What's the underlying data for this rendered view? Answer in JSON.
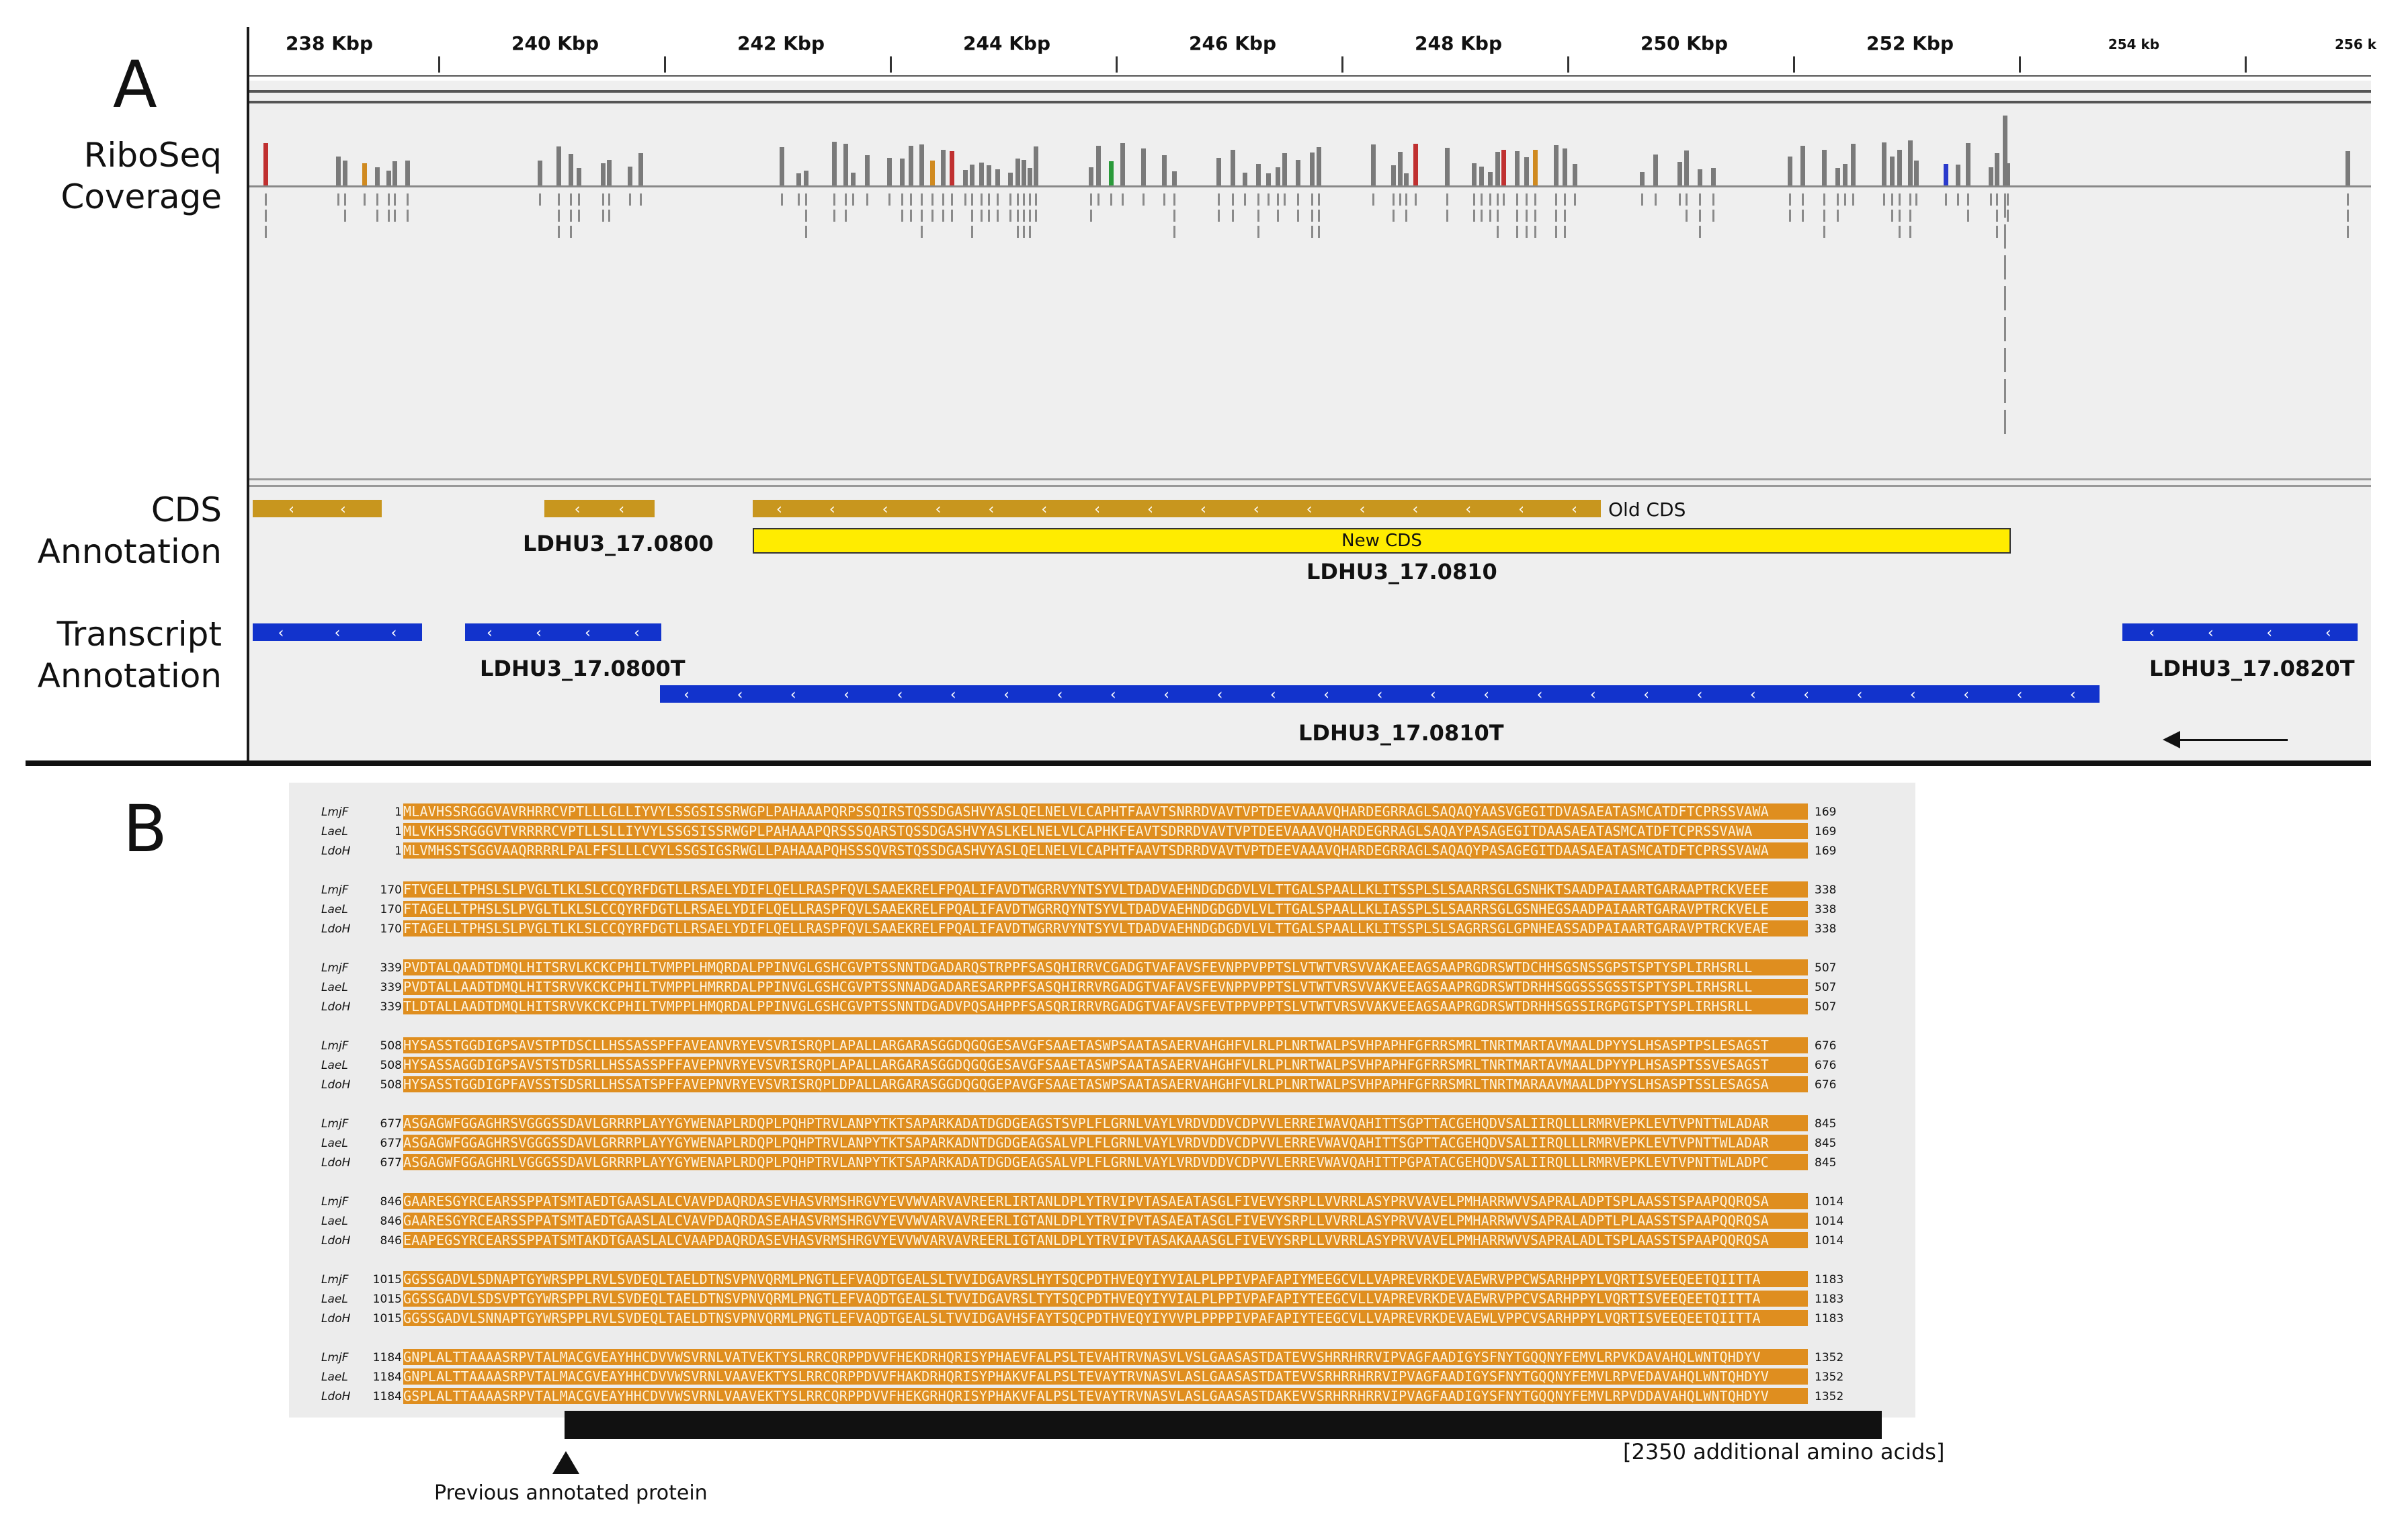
{
  "panel_a": {
    "letter": "A",
    "ruler_ticks": [
      "238 Kbp",
      "240 Kbp",
      "242 Kbp",
      "244 Kbp",
      "246 Kbp",
      "248 Kbp",
      "250 Kbp",
      "252 Kbp",
      "254 kb",
      "256 k"
    ],
    "tracks": {
      "riboseq": [
        "RiboSeq",
        "Coverage"
      ],
      "cds": [
        "CDS",
        "Annotation"
      ],
      "transcript": [
        "Transcript",
        "Annotation"
      ]
    },
    "cds_labels": {
      "old_cds": "Old CDS",
      "new_cds": "New CDS",
      "gene_0800": "LDHU3_17.0800",
      "gene_0810": "LDHU3_17.0810"
    },
    "transcript_labels": {
      "tx_0800": "LDHU3_17.0800T",
      "tx_0810": "LDHU3_17.0810T",
      "tx_0820": "LDHU3_17.0820T"
    },
    "colors": {
      "cds": "#c8961e",
      "new_cds": "#ffec00",
      "transcript": "#1233cc",
      "coverage": "#7a7a7a"
    }
  },
  "panel_b": {
    "letter": "B",
    "blocks": [
      {
        "rows": [
          {
            "species": "LmjF",
            "start": "1",
            "seq": "MLAVHSSRGGGVAVRHRRCVPTLLLGLLIYVYLSSGSISSRWGPLPAHAAAPQRPSSQIRSTQSSDGASHVYASLQELNELVLCAPHTFAAVTSNRRDVAVTVPTDEEVAAAVQHARDEGRRAGLSAQAQYAASVGEGITDVASAEATASMCATDFTCPRSSVAWA",
            "end": "169"
          },
          {
            "species": "LaeL",
            "start": "1",
            "seq": "MLVKHSSRGGGVTVRRRRCVPTLLSLLIYVYLSSGSISSRWGPLPAHAAAPQRSSSQARSTQSSDGASHVYASLKELNELVLCAPHKFEAVTSDRRDVAVTVPTDEEVAAAVQHARDEGRRAGLSAQAYPASAGEGITDAASAEATASMCATDFTCPRSSVAWA",
            "end": "169"
          },
          {
            "species": "LdoH",
            "start": "1",
            "seq": "MLVMHSSTSGGVAAQRRRRLPALFFSLLLCVYLSSGSIGSRWGLLPAHAAAPQHSSSQVRSTQSSDGASHVYASLQELNELVLCAPHTFAAVTSDRRDVAVTVPTDEEVAAAVQHARDEGRRAGLSAQAQYPASAGEGITDAASAEATASMCATDFTCPRSSVAWA",
            "end": "169"
          }
        ]
      },
      {
        "rows": [
          {
            "species": "LmjF",
            "start": "170",
            "seq": "FTVGELLTPHSLSLPVGLTLKLSLCCQYRFDGTLLRSAELYDIFLQELLRASPFQVLSAAEKRELFPQALIFAVDTWGRRVYNTSYVLTDADVAEHNDGDGDVLVLTTGALSPAALLKLITSSPLSLSAARRSGLGSNHKTSAADPAIAARTGARAAPTRCKVEEE",
            "end": "338"
          },
          {
            "species": "LaeL",
            "start": "170",
            "seq": "FTAGELLTPHSLSLPVGLTLKLSLCCQYRFDGTLLRSAELYDIFLQELLRASPFQVLSAAEKRELFPQALIFAVDTWGRRQYNTSYVLTDADVAEHNDGDGDVLVLTTGALSPAALLKLIASSPLSLSAARRSGLGSNHEGSAADPAIAARTGARAVPTRCKVELE",
            "end": "338"
          },
          {
            "species": "LdoH",
            "start": "170",
            "seq": "FTAGELLTPHSLSLPVGLTLKLSLCCQYRFDGTLLRSAELYDIFLQELLRASPFQVLSAAEKRELFPQALIFAVDTWGRRVYNTSYVLTDADVAEHNDGDGDVLVLTTGALSPAALLKLITSSPLSLSAGRRSGLGPNHEASSADPAIAARTGARAVPTRCKVEAE",
            "end": "338"
          }
        ]
      },
      {
        "rows": [
          {
            "species": "LmjF",
            "start": "339",
            "seq": "PVDTALQAADTDMQLHITSRVLKCKCPHILTVMPPLHMQRDALPPINVGLGSHCGVPTSSNNTDGADARQSTRPPFSASQHIRRVCGADGTVAFAVSFEVNPPVPPTSLVTWTVRSVVAKAEEAGSAAPRGDRSWTDCHHSGSNSSGPSTSPTYSPLIRHSRLL",
            "end": "507"
          },
          {
            "species": "LaeL",
            "start": "339",
            "seq": "PVDTALLAADTDMQLHITSRVVKCKCPHILTVMPPLHMRRDALPPINVGLGSHCGVPTSSNNADGADARESARPPFSASQHIRRVRGADGTVAFAVSFEVNPPVPPTSLVTWTVRSVVAKVEEAGSAAPRGDRSWTDRHHSGGSSSGSSTSPTYSPLIRHSRLL",
            "end": "507"
          },
          {
            "species": "LdoH",
            "start": "339",
            "seq": "TLDTALLAADTDMQLHITSRVVKCKCPHILTVMPPLHMQRDALPPINVGLGSHCGVPTSSNNTDGADVPQSAHPPFSASQRIRRVRGADGTVAFAVSFEVTPPVPPTSLVTWTVRSVVAKVEEAGSAAPRGDRSWTDRHHSGSSIRGPGTSPTYSPLIRHSRLL",
            "end": "507"
          }
        ]
      },
      {
        "rows": [
          {
            "species": "LmjF",
            "start": "508",
            "seq": "HYSASSTGGDIGPSAVSTPTDSCLLHSSASSPFFAVEANVRYEVSVRISRQPLAPALLARGARASGGDQGQGESAVGFSAAETASWPSAATASAERVAHGHFVLRLPLNRTWALPSVHPAPHFGFRRSMRLTNRTMARTAVMAALDPYYSLHSASPTPSLESAGST",
            "end": "676"
          },
          {
            "species": "LaeL",
            "start": "508",
            "seq": "HYSASSAGGDIGPSAVSTSTDSRLLHSSASSPFFAVEPNVRYEVSVRISRQPLAPALLARGARASGGDQGQGESAVGFSAAETASWPSAATASAERVAHGHFVLRLPLNRTWALPSVHPAPHFGFRRSMRLTNRTMARTAVMAALDPYYPLHSASPTSSVESAGST",
            "end": "676"
          },
          {
            "species": "LdoH",
            "start": "508",
            "seq": "HYSASSTGGDIGPFAVSSTSDSRLLHSSATSPFFAVEPNVRYEVSVRISRQPLDPALLARGARASGGDQGQGEPAVGFSAAETASWPSAATASAERVAHGHFVLRLPLNRTWALPSVHPAPHFGFRRSMRLTNRTMARAAVMAALDPYYSLHSASPTSSLESAGSA",
            "end": "676"
          }
        ]
      },
      {
        "rows": [
          {
            "species": "LmjF",
            "start": "677",
            "seq": "ASGAGWFGGAGHRSVGGGSSDAVLGRRRPLAYYGYWENAPLRDQPLPQHPTRVLANPYTKTSAPARKADATDGDGEAGSTSVPLFLGRNLVAYLVRDVDDVCDPVVLERREIWAVQAHITTSGPTTACGEHQDVSALIIRQLLLRMRVEPKLEVTVPNTTWLADAR",
            "end": "845"
          },
          {
            "species": "LaeL",
            "start": "677",
            "seq": "ASGAGWFGGAGHRSVGGGSSDAVLGRRRPLAYYGYWENAPLRDQPLPQHPTRVLANPYTKTSAPARKADNTDGDGEAGSALVPLFLGRNLVAYLVRDVDDVCDPVVLERREVWAVQAHITTSGPTTACGEHQDVSALIIRQLLLRMRVEPKLEVTVPNTTWLADAR",
            "end": "845"
          },
          {
            "species": "LdoH",
            "start": "677",
            "seq": "ASGAGWFGGAGHRLVGGGSSDAVLGRRRPLAYYGYWENAPLRDQPLPQHPTRVLANPYTKTSAPARKADATDGDGEAGSALVPLFLGRNLVAYLVRDVDDVCDPVVLERREVWAVQAHITTPGPATACGEHQDVSALIIRQLLLRMRVEPKLEVTVPNTTWLADPC",
            "end": "845"
          }
        ]
      },
      {
        "rows": [
          {
            "species": "LmjF",
            "start": "846",
            "seq": "GAARESGYRCEARSSPPATSMTAEDTGAASLALCVAVPDAQRDASEVHASVRMSHRGVYEVVWVARVAVREERLIRTANLDPLYTRVIPVTASAEATASGLFIVEVYSRPLLVVRRLASYPRVVAVELPMHARRWVVSAPRALADPTSPLAASSTSPAAPQQRQSA",
            "end": "1014"
          },
          {
            "species": "LaeL",
            "start": "846",
            "seq": "GAARESGYRCEARSSPPATSMTAEDTGAASLALCVAVPDAQRDASEAHASVRMSHRGVYEVVWVARVAVREERLIGTANLDPLYTRVIPVTASAEATASGLFIVEVYSRPLLVVRRLASYPRVVAVELPMHARRWVVSAPRALADPTLPLAASSTSPAAPQQRQSA",
            "end": "1014"
          },
          {
            "species": "LdoH",
            "start": "846",
            "seq": "EAAPEGSYRCEARSSPPATSMTAKDTGAASLALCVAAPDAQRDASEVHASVRMSHRGVYEVVWVARVAVREERLIGTANLDPLYTRVIPVTASAKAAASGLFIVEVYSRPLLVVRRLASYPRVVAVELPMHARRWVVSAPRALADLTSPLAASSTSPAAPQQRQSA",
            "end": "1014"
          }
        ]
      },
      {
        "rows": [
          {
            "species": "LmjF",
            "start": "1015",
            "seq": "GGSSGADVLSDNAPTGYWRSPPLRVLSVDEQLTAELDTNSVPNVQRMLPNGTLEFVAQDTGEALSLTVVIDGAVRSLHYTSQCPDTHVEQYIYVIALPLPPIVPAFAPIYMEEGCVLLVAPREVRKDEVAEWRVPPCWSARHPPYLVQRTISVEEQEETQIITTA",
            "end": "1183"
          },
          {
            "species": "LaeL",
            "start": "1015",
            "seq": "GGSSGADVLSDSVPTGYWRSPPLRVLSVDEQLTAELDTNSVPNVQRMLPNGTLEFVAQDTGEALSLTVVIDGAVRSLTYTSQCPDTHVEQYIYVIALPLPPIVPAFAPIYTEEGCVLLVAPREVRKDEVAEWRVPPCVSARHPPYLVQRTISVEEQEETQIITTA",
            "end": "1183"
          },
          {
            "species": "LdoH",
            "start": "1015",
            "seq": "GGSSGADVLSNNAPTGYWRSPPLRVLSVDEQLTAELDTNSVPNVQRMLPNGTLEFVAQDTGEALSLTVVIDGAVHSFAYTSQCPDTHVEQYIYVVPLPPPPIVPAFAPIYTEEGCVLLVAPREVRKDEVAEWLVPPCVSARHPPYLVQRTISVEEQEETQIITTA",
            "end": "1183"
          }
        ]
      },
      {
        "rows": [
          {
            "species": "LmjF",
            "start": "1184",
            "seq": "GNPLALTTAAAASRPVTALMACGVEAYHHCDVVWSVRNLVATVEKTYSLRRCQRPPDVVFHEKDRHQRISYPHAEVFALPSLTEVAHTRVNASVLVSLGAASASTDATEVVSHRRHRRVIPVAGFAADIGYSFNYTGQQNYFEMVLRPVKDAVAHQLWNTQHDYV",
            "end": "1352"
          },
          {
            "species": "LaeL",
            "start": "1184",
            "seq": "GNPLALTTAAAASRPVTALMACGVEAYHHCDVVWSVRNLVAAVEKTYSLRRCQRPPDVVFHAKDRHQRISYPHAKVFALPSLTEVAYTRVNASVLASLGAASASTDATEVVSRHRRHRRVIPVAGFAADIGYSFNYTGQQNYFEMVLRPVEDAVAHQLWNTQHDYV",
            "end": "1352"
          },
          {
            "species": "LdoH",
            "start": "1184",
            "seq": "GSPLALTTAAAASRPVTALMACGVEAYHHCDVVWSVRNLVAAVEKTYSLRRCQRPPDVVFHEKGRHQRISYPHAKVFALPSLTEVAYTRVNASVLASLGAASASTDAKEVVSRHRRHRRVIPVAGFAADIGYSFNYTGQQNYFEMVLRPVDDAVAHQLWNTQHDYV",
            "end": "1352"
          }
        ]
      }
    ],
    "additional_label": "[2350 additional amino acids]",
    "previous_label": "Previous annotated protein",
    "colors": {
      "alignment": "#df8e1f"
    }
  }
}
